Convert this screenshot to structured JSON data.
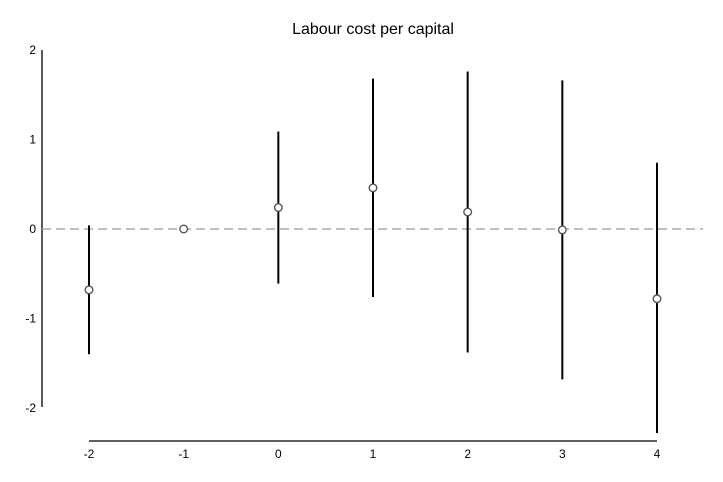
{
  "chart_data": {
    "type": "scatter",
    "title": "Labour cost per capital",
    "xlabel": "",
    "ylabel": "",
    "xlim": [
      -2,
      4
    ],
    "ylim": [
      -2,
      2
    ],
    "x_ticks": [
      "-2",
      "-1",
      "0",
      "1",
      "2",
      "3",
      "4"
    ],
    "y_ticks": [
      "2",
      "1",
      "0",
      "-1",
      "-2"
    ],
    "reference_line": {
      "y": 0,
      "style": "dashed",
      "color": "#aaaaaa"
    },
    "grid": false,
    "points": [
      {
        "x": -2,
        "y": -0.68,
        "lower": -1.4,
        "upper": 0.04
      },
      {
        "x": -1,
        "y": 0.0,
        "lower": null,
        "upper": null
      },
      {
        "x": 0,
        "y": 0.24,
        "lower": -0.61,
        "upper": 1.09
      },
      {
        "x": 1,
        "y": 0.46,
        "lower": -0.76,
        "upper": 1.68
      },
      {
        "x": 2,
        "y": 0.19,
        "lower": -1.38,
        "upper": 1.76
      },
      {
        "x": 3,
        "y": -0.01,
        "lower": -1.68,
        "upper": 1.66
      },
      {
        "x": 4,
        "y": -0.78,
        "lower": -2.28,
        "upper": 0.74
      }
    ]
  }
}
